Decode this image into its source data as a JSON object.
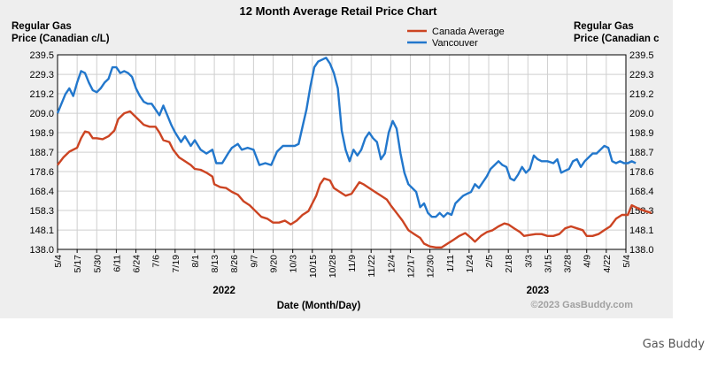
{
  "caption": "Gas Buddy",
  "chart_data": {
    "type": "line",
    "title": "12 Month Average Retail Price Chart",
    "ylabel_left": "Regular Gas\nPrice (Canadian c/L)",
    "ylabel_right": "Regular Gas\nPrice (Canadian c",
    "xlabel": "Date (Month/Day)",
    "watermark": "©2023 GasBuddy.com",
    "ylim": [
      138.0,
      239.5
    ],
    "yticks": [
      "138.0",
      "148.1",
      "158.3",
      "168.4",
      "178.6",
      "188.7",
      "198.9",
      "209.0",
      "219.2",
      "229.3",
      "239.5"
    ],
    "x_tick_labels": [
      "5/4",
      "5/17",
      "5/30",
      "6/11",
      "6/24",
      "7/6",
      "7/19",
      "8/1",
      "8/13",
      "8/26",
      "9/7",
      "9/20",
      "10/3",
      "10/15",
      "10/28",
      "11/9",
      "11/22",
      "12/4",
      "12/17",
      "12/30",
      "1/11",
      "1/24",
      "2/5",
      "2/18",
      "3/3",
      "3/15",
      "3/28",
      "4/9",
      "4/22",
      "5/4"
    ],
    "years": [
      {
        "label": "2022",
        "at_tick": 8.5
      },
      {
        "label": "2023",
        "at_tick": 24.5
      }
    ],
    "grid": true,
    "legend_position": "top-right",
    "series": [
      {
        "name": "Canada Average",
        "color": "#cc4422",
        "points": [
          [
            0,
            182
          ],
          [
            0.3,
            186
          ],
          [
            0.6,
            189
          ],
          [
            1,
            191
          ],
          [
            1.2,
            196
          ],
          [
            1.4,
            199.5
          ],
          [
            1.6,
            199
          ],
          [
            1.8,
            196
          ],
          [
            2,
            196
          ],
          [
            2.3,
            195.5
          ],
          [
            2.6,
            197
          ],
          [
            2.9,
            200
          ],
          [
            3.1,
            206
          ],
          [
            3.4,
            209
          ],
          [
            3.7,
            210
          ],
          [
            3.9,
            208
          ],
          [
            4.1,
            206
          ],
          [
            4.4,
            203
          ],
          [
            4.7,
            202
          ],
          [
            5,
            202
          ],
          [
            5.2,
            199
          ],
          [
            5.4,
            195
          ],
          [
            5.7,
            194
          ],
          [
            5.9,
            190
          ],
          [
            6.2,
            186
          ],
          [
            6.5,
            184
          ],
          [
            6.8,
            182
          ],
          [
            7,
            180
          ],
          [
            7.3,
            179.5
          ],
          [
            7.6,
            178
          ],
          [
            7.9,
            176
          ],
          [
            8,
            172
          ],
          [
            8.3,
            170.5
          ],
          [
            8.6,
            170
          ],
          [
            8.9,
            168
          ],
          [
            9.2,
            166.5
          ],
          [
            9.5,
            163
          ],
          [
            9.8,
            161
          ],
          [
            10.1,
            158
          ],
          [
            10.4,
            155
          ],
          [
            10.7,
            154
          ],
          [
            11,
            152
          ],
          [
            11.3,
            152
          ],
          [
            11.6,
            153
          ],
          [
            11.9,
            151
          ],
          [
            12.2,
            153
          ],
          [
            12.5,
            156
          ],
          [
            12.8,
            158
          ],
          [
            13,
            162
          ],
          [
            13.2,
            166
          ],
          [
            13.4,
            172
          ],
          [
            13.6,
            175
          ],
          [
            13.9,
            174
          ],
          [
            14.1,
            170
          ],
          [
            14.4,
            168
          ],
          [
            14.7,
            166
          ],
          [
            15,
            167
          ],
          [
            15.2,
            170
          ],
          [
            15.4,
            173
          ],
          [
            15.6,
            172
          ],
          [
            15.9,
            170
          ],
          [
            16.2,
            168
          ],
          [
            16.5,
            166
          ],
          [
            16.8,
            164
          ],
          [
            17,
            161
          ],
          [
            17.3,
            157
          ],
          [
            17.6,
            153
          ],
          [
            17.9,
            148
          ],
          [
            18.2,
            146
          ],
          [
            18.5,
            144
          ],
          [
            18.7,
            141
          ],
          [
            19,
            139.5
          ],
          [
            19.3,
            139
          ],
          [
            19.6,
            139
          ],
          [
            19.9,
            141
          ],
          [
            20.2,
            143
          ],
          [
            20.5,
            145
          ],
          [
            20.8,
            146.5
          ],
          [
            21.1,
            144
          ],
          [
            21.3,
            142
          ],
          [
            21.6,
            145
          ],
          [
            21.9,
            147
          ],
          [
            22.2,
            148
          ],
          [
            22.5,
            150
          ],
          [
            22.8,
            151.5
          ],
          [
            23,
            151
          ],
          [
            23.3,
            149
          ],
          [
            23.6,
            147
          ],
          [
            23.8,
            145
          ],
          [
            24.1,
            145.5
          ],
          [
            24.4,
            146
          ],
          [
            24.7,
            146
          ],
          [
            25,
            145
          ],
          [
            25.3,
            145
          ],
          [
            25.6,
            146
          ],
          [
            25.9,
            149
          ],
          [
            26.2,
            150
          ],
          [
            26.5,
            149
          ],
          [
            26.8,
            148
          ],
          [
            27,
            145
          ],
          [
            27.3,
            145
          ],
          [
            27.6,
            146
          ],
          [
            27.9,
            148
          ],
          [
            28.2,
            150
          ],
          [
            28.5,
            154
          ],
          [
            28.8,
            156
          ],
          [
            29.1,
            156
          ],
          [
            29.3,
            161
          ],
          [
            29.5,
            160
          ],
          [
            29.7,
            159
          ],
          [
            30,
            158
          ],
          [
            30.3,
            157
          ]
        ]
      },
      {
        "name": "Vancouver",
        "color": "#2277cc",
        "points": [
          [
            0,
            209
          ],
          [
            0.2,
            214
          ],
          [
            0.4,
            219
          ],
          [
            0.6,
            222
          ],
          [
            0.8,
            218
          ],
          [
            1,
            225
          ],
          [
            1.2,
            231
          ],
          [
            1.4,
            230
          ],
          [
            1.6,
            225
          ],
          [
            1.8,
            221
          ],
          [
            2,
            220
          ],
          [
            2.2,
            222
          ],
          [
            2.4,
            225
          ],
          [
            2.6,
            227
          ],
          [
            2.8,
            233
          ],
          [
            3,
            233
          ],
          [
            3.2,
            230
          ],
          [
            3.4,
            231
          ],
          [
            3.6,
            230
          ],
          [
            3.8,
            228
          ],
          [
            4,
            222
          ],
          [
            4.2,
            218
          ],
          [
            4.4,
            215
          ],
          [
            4.6,
            214
          ],
          [
            4.8,
            214
          ],
          [
            5,
            211
          ],
          [
            5.2,
            208
          ],
          [
            5.4,
            213
          ],
          [
            5.6,
            208
          ],
          [
            5.8,
            203
          ],
          [
            6,
            199
          ],
          [
            6.3,
            194
          ],
          [
            6.5,
            197
          ],
          [
            6.8,
            192
          ],
          [
            7,
            195
          ],
          [
            7.3,
            190
          ],
          [
            7.6,
            188
          ],
          [
            7.9,
            190
          ],
          [
            8.1,
            183
          ],
          [
            8.4,
            183
          ],
          [
            8.7,
            188
          ],
          [
            8.9,
            191
          ],
          [
            9.2,
            193
          ],
          [
            9.4,
            190
          ],
          [
            9.7,
            191
          ],
          [
            10,
            190
          ],
          [
            10.3,
            182
          ],
          [
            10.6,
            183
          ],
          [
            10.9,
            182
          ],
          [
            11.2,
            189
          ],
          [
            11.5,
            192
          ],
          [
            11.8,
            192
          ],
          [
            12.1,
            192
          ],
          [
            12.3,
            193
          ],
          [
            12.5,
            202
          ],
          [
            12.7,
            211
          ],
          [
            12.9,
            223
          ],
          [
            13.1,
            233
          ],
          [
            13.3,
            236
          ],
          [
            13.5,
            237
          ],
          [
            13.7,
            238
          ],
          [
            13.9,
            235
          ],
          [
            14.1,
            230
          ],
          [
            14.3,
            222
          ],
          [
            14.5,
            200
          ],
          [
            14.7,
            190
          ],
          [
            14.9,
            184
          ],
          [
            15.1,
            190
          ],
          [
            15.3,
            187
          ],
          [
            15.5,
            190
          ],
          [
            15.7,
            196
          ],
          [
            15.9,
            199
          ],
          [
            16.1,
            196
          ],
          [
            16.3,
            194
          ],
          [
            16.5,
            185
          ],
          [
            16.7,
            188
          ],
          [
            16.9,
            199
          ],
          [
            17.1,
            205
          ],
          [
            17.3,
            201
          ],
          [
            17.5,
            188
          ],
          [
            17.7,
            178
          ],
          [
            17.9,
            172
          ],
          [
            18.1,
            170
          ],
          [
            18.3,
            168
          ],
          [
            18.5,
            160
          ],
          [
            18.7,
            162
          ],
          [
            18.9,
            157
          ],
          [
            19.1,
            155
          ],
          [
            19.3,
            155
          ],
          [
            19.5,
            157
          ],
          [
            19.7,
            155
          ],
          [
            19.9,
            157
          ],
          [
            20.1,
            156
          ],
          [
            20.3,
            162
          ],
          [
            20.5,
            164
          ],
          [
            20.7,
            166
          ],
          [
            20.9,
            167
          ],
          [
            21.1,
            168
          ],
          [
            21.3,
            172
          ],
          [
            21.5,
            170
          ],
          [
            21.7,
            173
          ],
          [
            21.9,
            176
          ],
          [
            22.1,
            180
          ],
          [
            22.3,
            182
          ],
          [
            22.5,
            184
          ],
          [
            22.7,
            182
          ],
          [
            22.9,
            181
          ],
          [
            23.1,
            175
          ],
          [
            23.3,
            174
          ],
          [
            23.5,
            177
          ],
          [
            23.7,
            181
          ],
          [
            23.9,
            178
          ],
          [
            24.1,
            180
          ],
          [
            24.3,
            187
          ],
          [
            24.5,
            185
          ],
          [
            24.7,
            184
          ],
          [
            25,
            184
          ],
          [
            25.3,
            183
          ],
          [
            25.5,
            185
          ],
          [
            25.7,
            178
          ],
          [
            25.9,
            179
          ],
          [
            26.1,
            180
          ],
          [
            26.3,
            184
          ],
          [
            26.5,
            185
          ],
          [
            26.7,
            181
          ],
          [
            26.9,
            184
          ],
          [
            27.1,
            186
          ],
          [
            27.3,
            188
          ],
          [
            27.5,
            188
          ],
          [
            27.7,
            190
          ],
          [
            27.9,
            192
          ],
          [
            28.1,
            191
          ],
          [
            28.3,
            184
          ],
          [
            28.5,
            183
          ],
          [
            28.7,
            184
          ],
          [
            28.9,
            183
          ],
          [
            29.1,
            183
          ],
          [
            29.3,
            184
          ],
          [
            29.5,
            183
          ]
        ]
      }
    ]
  }
}
